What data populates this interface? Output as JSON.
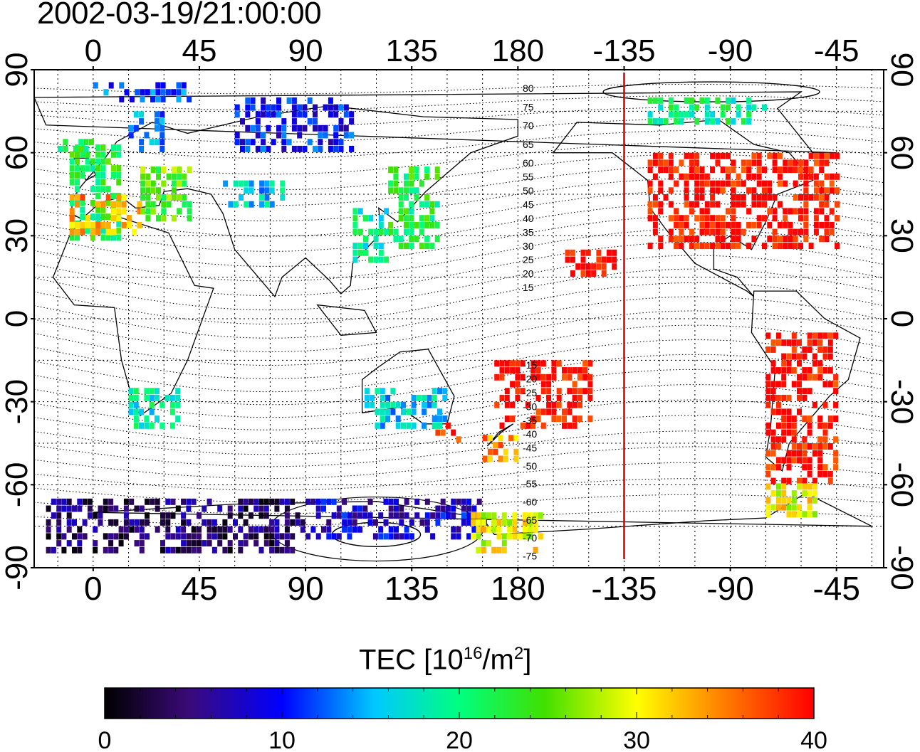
{
  "title": "2002-03-19/21:00:00",
  "map": {
    "x_ticks": [
      "0",
      "45",
      "90",
      "135",
      "180",
      "-135",
      "-90",
      "-45"
    ],
    "y_ticks": [
      "90",
      "60",
      "30",
      "0",
      "-30",
      "-60",
      "-90"
    ],
    "contour_labels_north": [
      "80",
      "75",
      "70",
      "65",
      "60",
      "55",
      "50",
      "45",
      "40",
      "35",
      "30",
      "25",
      "20",
      "15"
    ],
    "contour_labels_south": [
      "-15",
      "-20",
      "-25",
      "-30",
      "-35",
      "-40",
      "-45",
      "-50",
      "-55",
      "-60",
      "-65",
      "-70",
      "-75"
    ],
    "terminator_longitude": -135,
    "terminator_color": "#d40000"
  },
  "colorbar": {
    "label_main": "TEC  [10",
    "label_exp1": "16",
    "label_mid": "/m",
    "label_exp2": "2",
    "label_end": "]",
    "ticks": [
      "0",
      "10",
      "20",
      "30",
      "40"
    ],
    "range": [
      0,
      40
    ]
  },
  "chart_data": {
    "type": "heatmap",
    "title": "2002-03-19/21:00:00",
    "xlabel": "",
    "ylabel": "",
    "colorbar_label": "TEC [10^16/m^2]",
    "xlim": [
      -25,
      335
    ],
    "ylim": [
      -90,
      90
    ],
    "zlim": [
      0,
      40
    ],
    "patches": [
      {
        "lon": [
          -10,
          10
        ],
        "lat": [
          28,
          62
        ],
        "tec": 22
      },
      {
        "lon": [
          -10,
          20
        ],
        "lat": [
          30,
          45
        ],
        "tec": 34
      },
      {
        "lon": [
          20,
          40
        ],
        "lat": [
          35,
          55
        ],
        "tec": 25
      },
      {
        "lon": [
          15,
          30
        ],
        "lat": [
          60,
          75
        ],
        "tec": 14
      },
      {
        "lon": [
          -15,
          0
        ],
        "lat": [
          60,
          65
        ],
        "tec": 22
      },
      {
        "lon": [
          0,
          40
        ],
        "lat": [
          78,
          85
        ],
        "tec": 12
      },
      {
        "lon": [
          125,
          145
        ],
        "lat": [
          25,
          55
        ],
        "tec": 22
      },
      {
        "lon": [
          110,
          125
        ],
        "lat": [
          20,
          40
        ],
        "tec": 19
      },
      {
        "lon": [
          55,
          80
        ],
        "lat": [
          40,
          50
        ],
        "tec": 16
      },
      {
        "lon": [
          -45,
          -125
        ],
        "lat": [
          25,
          60
        ],
        "tec": 40
      },
      {
        "lon": [
          -125,
          -75
        ],
        "lat": [
          70,
          80
        ],
        "tec": 20
      },
      {
        "lon": [
          -75,
          -45
        ],
        "lat": [
          -60,
          -5
        ],
        "tec": 40
      },
      {
        "lon": [
          -75,
          -55
        ],
        "lat": [
          -72,
          -60
        ],
        "tec": 30
      },
      {
        "lon": [
          170,
          210
        ],
        "lat": [
          -40,
          -15
        ],
        "tec": 40
      },
      {
        "lon": [
          165,
          180
        ],
        "lat": [
          -52,
          -42
        ],
        "tec": 34
      },
      {
        "lon": [
          145,
          155
        ],
        "lat": [
          -45,
          -35
        ],
        "tec": 38
      },
      {
        "lon": [
          115,
          150
        ],
        "lat": [
          -40,
          -25
        ],
        "tec": 16
      },
      {
        "lon": [
          15,
          35
        ],
        "lat": [
          -40,
          -25
        ],
        "tec": 18
      },
      {
        "lon": [
          -20,
          90
        ],
        "lat": [
          -85,
          -65
        ],
        "tec": 4
      },
      {
        "lon": [
          90,
          165
        ],
        "lat": [
          -80,
          -65
        ],
        "tec": 8
      },
      {
        "lon": [
          160,
          190
        ],
        "lat": [
          -85,
          -72
        ],
        "tec": 30
      },
      {
        "lon": [
          200,
          220
        ],
        "lat": [
          15,
          25
        ],
        "tec": 40
      },
      {
        "lon": [
          60,
          110
        ],
        "lat": [
          60,
          80
        ],
        "tec": 10
      }
    ]
  }
}
